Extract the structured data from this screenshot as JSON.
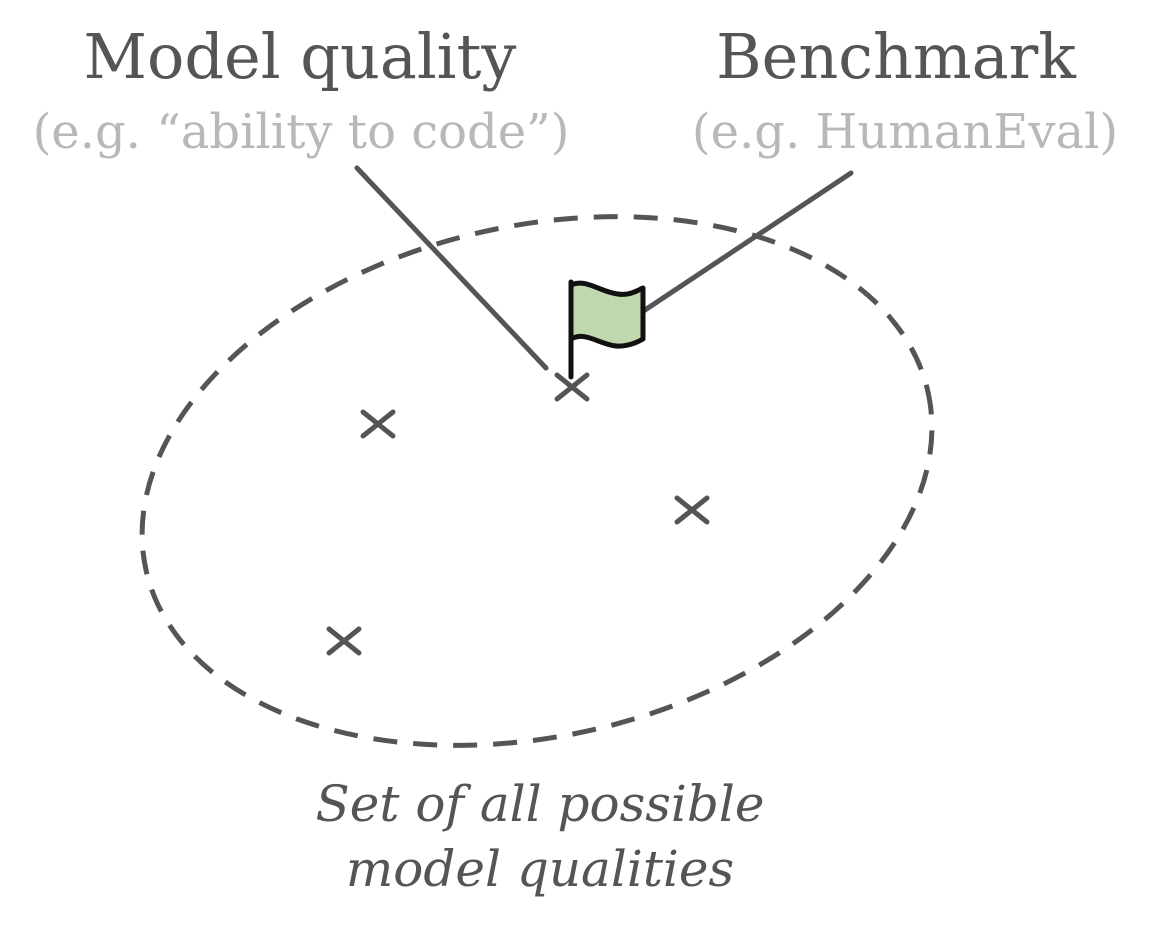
{
  "labels": {
    "model_quality": {
      "title": "Model quality",
      "subtitle": "(e.g. “ability to code”)"
    },
    "benchmark": {
      "title": "Benchmark",
      "subtitle": "(e.g. HumanEval)"
    }
  },
  "caption": {
    "line1": "Set of all possible",
    "line2": "model qualities"
  },
  "colors": {
    "ink": "#555555",
    "subtitle": "#b8b8b8",
    "flag_fill": "#bfd8ad",
    "flag_stroke": "#111111"
  },
  "icons": {
    "flag": "flag-icon",
    "marker": "cross-icon"
  }
}
